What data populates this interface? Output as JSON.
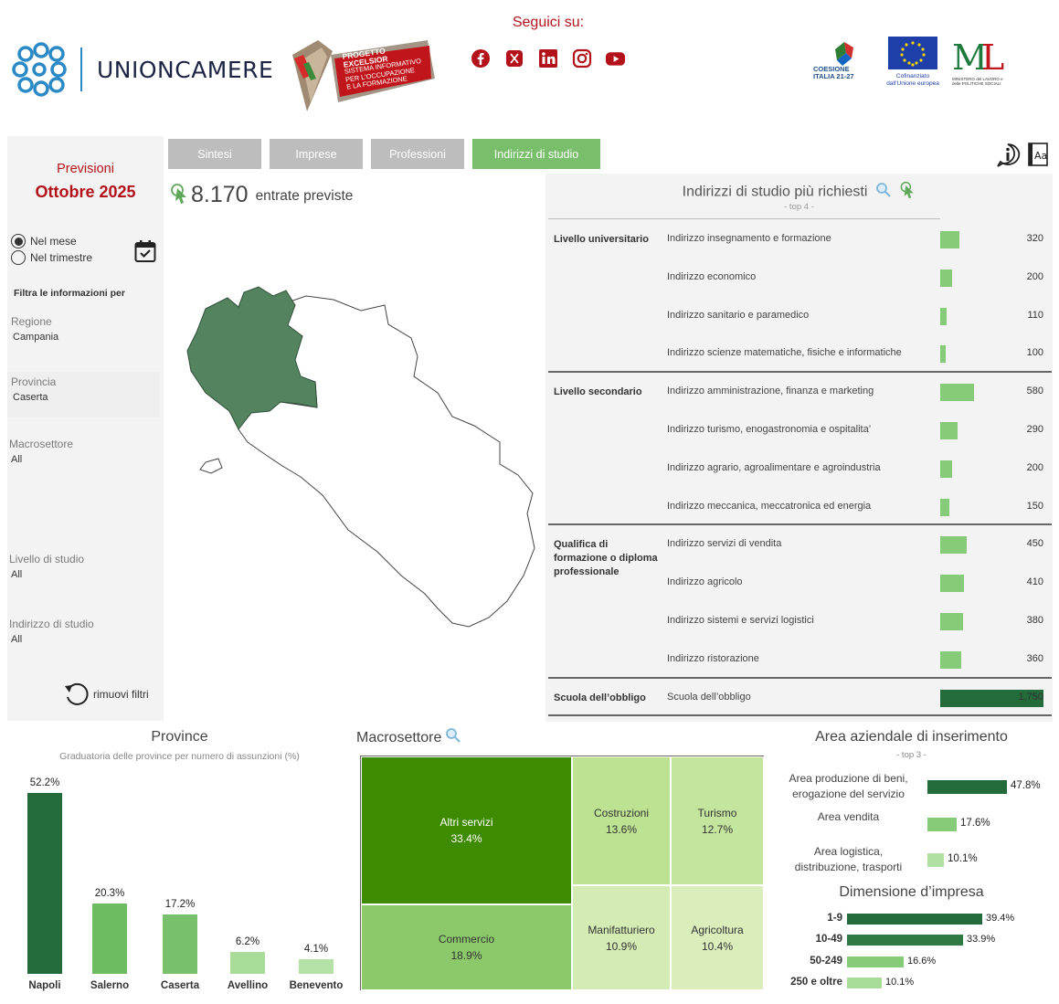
{
  "header": {
    "brand": "UNIONCAMERE",
    "excelsior": {
      "line1": "PROGETTO EXCELSIOR",
      "line2": "SISTEMA INFORMATIVO",
      "line3": "PER L'OCCUPAZIONE",
      "line4": "E LA FORMAZIONE"
    },
    "social_label": "Seguici su:",
    "social": [
      "facebook-icon",
      "x-icon",
      "linkedin-icon",
      "instagram-icon",
      "youtube-icon"
    ],
    "partners": {
      "coesione": "COESIONE ITALIA 21-27",
      "ue": "Cofinanziato dall'Unione europea",
      "ministero": "MINISTERO del LAVORO e delle POLITICHE SOCIALI"
    }
  },
  "sidebar": {
    "previsioni": "Previsioni",
    "period": "Ottobre 2025",
    "radio": [
      {
        "label": "Nel mese",
        "checked": true
      },
      {
        "label": "Nel trimestre",
        "checked": false
      }
    ],
    "filter_title": "Filtra le informazioni per",
    "filters": [
      {
        "label": "Regione",
        "value": "Campania"
      },
      {
        "label": "Provincia",
        "value": "Caserta"
      },
      {
        "label": "Macrosettore",
        "value": "All"
      },
      {
        "label": "Livello di studio",
        "value": "All"
      },
      {
        "label": "Indirizzo di studio",
        "value": "All"
      }
    ],
    "reset": "rimuovi filtri"
  },
  "tabs": [
    "Sintesi",
    "Imprese",
    "Professioni",
    "Indirizzi di studio"
  ],
  "kpi": {
    "value": "8.170",
    "label": "entrate previste"
  },
  "studio": {
    "title": "Indirizzi di studio più richiesti",
    "subtitle": "- top 4 -",
    "max": 1750,
    "groups": [
      {
        "name": "Livello universitario",
        "rows": [
          {
            "label": "Indirizzo insegnamento e formazione",
            "value": 320
          },
          {
            "label": "Indirizzo economico",
            "value": 200
          },
          {
            "label": "Indirizzo sanitario e paramedico",
            "value": 110
          },
          {
            "label": "Indirizzo scienze matematiche, fisiche e informatiche",
            "value": 100
          }
        ]
      },
      {
        "name": "Livello secondario",
        "rows": [
          {
            "label": "Indirizzo amministrazione, finanza e marketing",
            "value": 580
          },
          {
            "label": "Indirizzo turismo, enogastronomia e ospitalita’",
            "value": 290
          },
          {
            "label": "Indirizzo agrario, agroalimentare e agroindustria",
            "value": 200
          },
          {
            "label": "Indirizzo meccanica, meccatronica ed energia",
            "value": 150
          }
        ]
      },
      {
        "name": "Qualifica di formazione o diploma professionale",
        "rows": [
          {
            "label": "Indirizzo servizi di vendita",
            "value": 450
          },
          {
            "label": "Indirizzo agricolo",
            "value": 410
          },
          {
            "label": "Indirizzo sistemi e servizi logistici",
            "value": 380
          },
          {
            "label": "Indirizzo ristorazione",
            "value": 360
          }
        ]
      },
      {
        "name": "Scuola dell’obbligo",
        "rows": [
          {
            "label": "Scuola dell’obbligo",
            "value": "1,750"
          }
        ]
      }
    ]
  },
  "province": {
    "title": "Province",
    "subtitle": "Graduatoria delle province per numero di assunzioni (%)",
    "bars": [
      {
        "name": "Napoli",
        "pct": 52.2,
        "label": "52.2%",
        "color": "#236b3a"
      },
      {
        "name": "Salerno",
        "pct": 20.3,
        "label": "20.3%",
        "color": "#6dbb62"
      },
      {
        "name": "Caserta",
        "pct": 17.2,
        "label": "17.2%",
        "color": "#79c06c"
      },
      {
        "name": "Avellino",
        "pct": 6.2,
        "label": "6.2%",
        "color": "#a9dc99"
      },
      {
        "name": "Benevento",
        "pct": 4.1,
        "label": "4.1%",
        "color": "#b4e2a6"
      }
    ]
  },
  "macro": {
    "title": "Macrosettore",
    "cells": [
      {
        "name": "Altri servizi",
        "pct": "33.4%",
        "color": "#3e8b00"
      },
      {
        "name": "Commercio",
        "pct": "18.9%",
        "color": "#8cc96b"
      },
      {
        "name": "Costruzioni",
        "pct": "13.6%",
        "color": "#bde292"
      },
      {
        "name": "Turismo",
        "pct": "12.7%",
        "color": "#c4e59e"
      },
      {
        "name": "Manifatturiero",
        "pct": "10.9%",
        "color": "#d4ebb3"
      },
      {
        "name": "Agricoltura",
        "pct": "10.4%",
        "color": "#d9eebb"
      }
    ]
  },
  "area": {
    "title": "Area aziendale di inserimento",
    "subtitle": "- top 3 -",
    "max": 47.8,
    "rows": [
      {
        "label1": "Area produzione di beni,",
        "label2": "erogazione del servizio",
        "value": 47.8,
        "text": "47.8%",
        "color": "#236b3a"
      },
      {
        "label1": "Area vendita",
        "label2": "",
        "value": 17.6,
        "text": "17.6%",
        "color": "#86cc78"
      },
      {
        "label1": "Area logistica,",
        "label2": "distribuzione, trasporti",
        "value": 10.1,
        "text": "10.1%",
        "color": "#b0e0a2"
      }
    ]
  },
  "dimensione": {
    "title": "Dimensione d’impresa",
    "max": 39.4,
    "rows": [
      {
        "label": "1-9",
        "value": 39.4,
        "text": "39.4%",
        "color": "#236b3a"
      },
      {
        "label": "10-49",
        "value": 33.9,
        "text": "33.9%",
        "color": "#2f7a44"
      },
      {
        "label": "50-249",
        "value": 16.6,
        "text": "16.6%",
        "color": "#86cc78"
      },
      {
        "label": "250 e oltre",
        "value": 10.1,
        "text": "10.1%",
        "color": "#a9dc99"
      }
    ]
  }
}
